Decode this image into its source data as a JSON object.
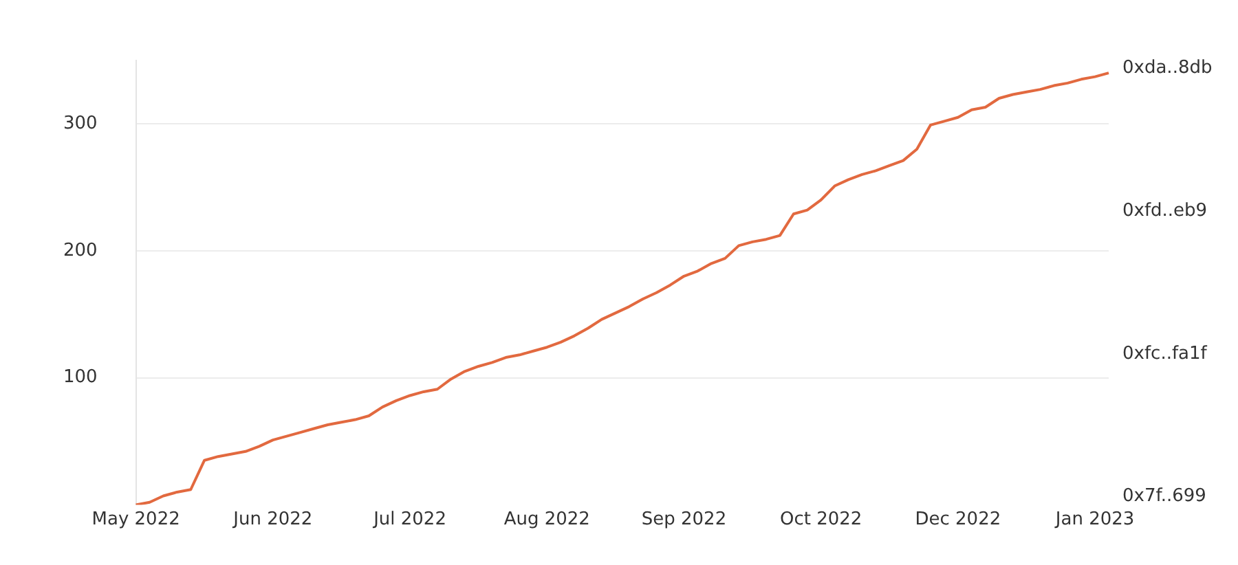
{
  "chart_data": {
    "type": "line",
    "categories": [
      "May 2022",
      null,
      null,
      null,
      null,
      null,
      null,
      null,
      null,
      null,
      "Jun 2022",
      null,
      null,
      null,
      null,
      null,
      null,
      null,
      null,
      null,
      "Jul 2022",
      null,
      null,
      null,
      null,
      null,
      null,
      null,
      null,
      null,
      "Aug 2022",
      null,
      null,
      null,
      null,
      null,
      null,
      null,
      null,
      null,
      "Sep 2022",
      null,
      null,
      null,
      null,
      null,
      null,
      null,
      null,
      null,
      "Oct 2022",
      null,
      null,
      null,
      null,
      null,
      null,
      null,
      null,
      null,
      "Dec 2022",
      null,
      null,
      null,
      null,
      null,
      null,
      null,
      null,
      null,
      "Jan 2023",
      null
    ],
    "series": [
      {
        "color": "#e2693f",
        "values": [
          0,
          2,
          7,
          10,
          12,
          35,
          38,
          40,
          42,
          46,
          51,
          54,
          57,
          60,
          63,
          65,
          67,
          70,
          77,
          82,
          86,
          89,
          91,
          99,
          105,
          109,
          112,
          116,
          118,
          121,
          124,
          128,
          133,
          139,
          146,
          151,
          156,
          162,
          167,
          173,
          180,
          184,
          190,
          194,
          204,
          207,
          209,
          212,
          229,
          232,
          240,
          251,
          256,
          260,
          263,
          267,
          271,
          280,
          299,
          302,
          305,
          311,
          313,
          320,
          323,
          325,
          327,
          330,
          332,
          335,
          337,
          340
        ]
      }
    ],
    "ylim": [
      0,
      350
    ],
    "yticks": [
      100,
      200,
      300
    ],
    "annotations": [
      "0xda..8db",
      "0xfd..eb9",
      "0xfc..fa1f",
      "0x7f..699"
    ],
    "grid": "y",
    "marker": "none",
    "line_style": "solid",
    "legend": false
  }
}
